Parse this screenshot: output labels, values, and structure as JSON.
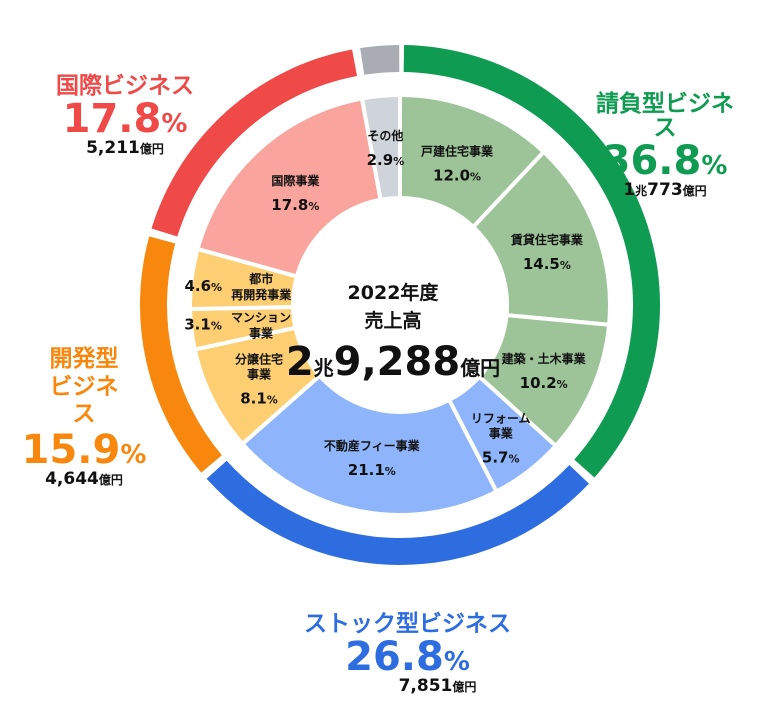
{
  "chart_data": {
    "type": "donut",
    "center": {
      "line1": "2022年度",
      "line2": "売上高",
      "num1": "2",
      "unit1": "兆",
      "num2": "9,288",
      "unit2": "億円"
    },
    "segments": [
      {
        "name": "戸建住宅事業",
        "value": 12.0,
        "value_label": "12.0",
        "color": "#9dc498"
      },
      {
        "name": "賃貸住宅事業",
        "value": 14.5,
        "value_label": "14.5",
        "color": "#9dc498"
      },
      {
        "name": "建築・土木事業",
        "value": 10.2,
        "value_label": "10.2",
        "color": "#9dc498"
      },
      {
        "name": "リフォーム事業",
        "value": 5.7,
        "value_label": "5.7",
        "color": "#8eb5fb"
      },
      {
        "name": "不動産フィー事業",
        "value": 21.1,
        "value_label": "21.1",
        "color": "#8eb5fb"
      },
      {
        "name": "分譲住宅事業",
        "value": 8.1,
        "value_label": "8.1",
        "color": "#fece72"
      },
      {
        "name": "マンション事業",
        "value": 3.1,
        "value_label": "3.1",
        "color": "#fece72"
      },
      {
        "name": "都市再開発事業",
        "value": 4.6,
        "value_label": "4.6",
        "color": "#fece72"
      },
      {
        "name": "国際事業",
        "value": 17.8,
        "value_label": "17.8",
        "color": "#f9a49c"
      },
      {
        "name": "その他",
        "value": 2.9,
        "value_label": "2.9",
        "color": "#cfd3da"
      }
    ],
    "groups": [
      {
        "name": "請負型ビジネス",
        "share": 36.8,
        "share_label": "36.8",
        "amount_num1": "1",
        "amount_unit1": "兆",
        "amount_num2": "773",
        "amount_unit2": "億円",
        "color": "#0f9b52"
      },
      {
        "name": "ストック型ビジネス",
        "share": 26.8,
        "share_label": "26.8",
        "amount_num1": "",
        "amount_unit1": "",
        "amount_num2": "7,851",
        "amount_unit2": "億円",
        "color": "#2e6de0"
      },
      {
        "name": "開発型ビジネス",
        "share": 15.9,
        "share_label": "15.9",
        "amount_num1": "",
        "amount_unit1": "",
        "amount_num2": "4,644",
        "amount_unit2": "億円",
        "color": "#f7870d"
      },
      {
        "name": "国際ビジネス",
        "share": 17.8,
        "share_label": "17.8",
        "amount_num1": "",
        "amount_unit1": "",
        "amount_num2": "5,211",
        "amount_unit2": "億円",
        "color": "#ef4a48"
      },
      {
        "name": "その他",
        "share": 2.9,
        "share_label": "",
        "amount_num1": "",
        "amount_unit1": "",
        "amount_num2": "",
        "amount_unit2": "",
        "color": "#a9adb3"
      }
    ],
    "percent_sign": "%"
  }
}
